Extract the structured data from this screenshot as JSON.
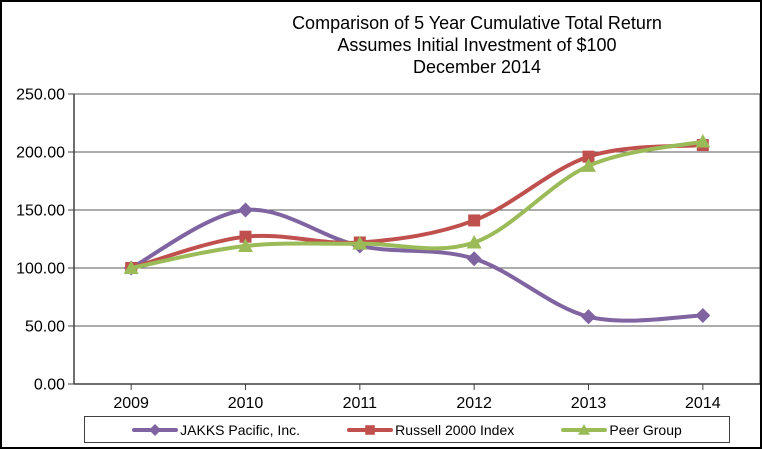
{
  "figure": {
    "title_line1": "Comparison of 5 Year Cumulative Total Return",
    "title_line2": "Assumes Initial Investment of $100",
    "title_line3": "December 2014"
  },
  "chart_data": {
    "type": "line",
    "smooth": true,
    "title": "Comparison of 5 Year Cumulative Total Return — Assumes Initial Investment of $100 — December 2014",
    "x_labels": [
      "2009",
      "2010",
      "2011",
      "2012",
      "2013",
      "2014"
    ],
    "y_tick_values": [
      0,
      50,
      100,
      150,
      200,
      250
    ],
    "y_tick_labels": [
      "0.00",
      "50.00",
      "100.00",
      "150.00",
      "200.00",
      "250.00"
    ],
    "ylim": [
      0,
      250
    ],
    "grid": true,
    "legend_position": "bottom",
    "series": [
      {
        "name": "JAKKS Pacific, Inc.",
        "marker": "diamond",
        "color": "#8064A2",
        "values": [
          100.0,
          150.0,
          119.0,
          108.0,
          58.0,
          59.0
        ]
      },
      {
        "name": "Russell 2000 Index",
        "marker": "square",
        "color": "#C0504D",
        "values": [
          100.0,
          127.0,
          122.0,
          141.0,
          196.0,
          206.0
        ]
      },
      {
        "name": "Peer Group",
        "marker": "triangle",
        "color": "#9BBB59",
        "values": [
          100.0,
          119.0,
          121.0,
          122.0,
          188.0,
          209.0
        ]
      }
    ]
  },
  "style_colors": {
    "axis": "#404040",
    "gridline": "#595959",
    "text": "#000000"
  }
}
